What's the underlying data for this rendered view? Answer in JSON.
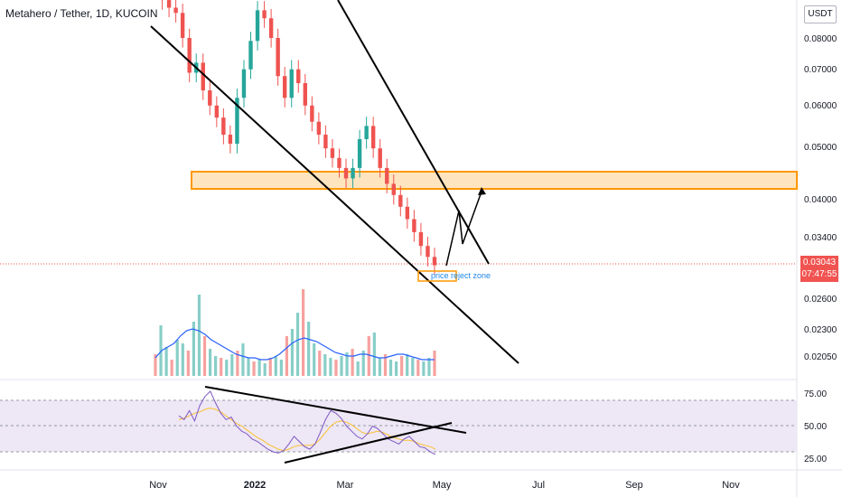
{
  "header": {
    "title": "Metahero / Tether, 1D, KUCOIN",
    "currency": "USDT",
    "currency_icon": "currency-usdt-icon"
  },
  "price_tag": {
    "value": "0.03043",
    "countdown": "07:47:55"
  },
  "colors": {
    "up": "#26a69a",
    "down": "#ef5350",
    "zone": "#ff9800",
    "ma": "#2962ff",
    "rsi": "#7e57c2",
    "rsi_ma": "#fbc02d",
    "rsi_band": "#ede7f6"
  },
  "chart_data": [
    {
      "type": "candlestick",
      "title": "Metahero / Tether, 1D, KUCOIN",
      "x_ticks": [
        "Nov",
        "2022",
        "Mar",
        "May",
        "Jul",
        "Sep",
        "Nov"
      ],
      "y_ticks": [
        "0.08000",
        "0.07000",
        "0.06000",
        "0.05000",
        "0.04000",
        "0.03400",
        "0.02600",
        "0.02300",
        "0.02050"
      ],
      "y_scale": "log",
      "last_price": 0.03043,
      "resistance_zone": [
        0.0427,
        0.046
      ],
      "annotation": "price reject zone",
      "close_series": [
        0.096,
        0.094,
        0.091,
        0.089,
        0.08,
        0.069,
        0.072,
        0.064,
        0.06,
        0.057,
        0.053,
        0.051,
        0.062,
        0.07,
        0.079,
        0.09,
        0.087,
        0.08,
        0.068,
        0.062,
        0.07,
        0.066,
        0.06,
        0.056,
        0.053,
        0.05,
        0.048,
        0.046,
        0.044,
        0.046,
        0.052,
        0.055,
        0.05,
        0.046,
        0.043,
        0.041,
        0.039,
        0.037,
        0.035,
        0.033,
        0.0315,
        0.0304
      ]
    },
    {
      "type": "bar",
      "title": "Volume",
      "values": [
        12,
        28,
        16,
        9,
        20,
        18,
        14,
        30,
        45,
        22,
        15,
        11,
        10,
        9,
        12,
        14,
        18,
        10,
        8,
        9,
        7,
        10,
        11,
        9,
        22,
        26,
        35,
        48,
        30,
        18,
        14,
        12,
        10,
        9,
        11,
        13,
        15,
        8,
        14,
        22,
        24,
        10,
        12,
        9,
        8,
        11,
        12,
        10,
        9,
        8,
        10,
        14
      ],
      "moving_average": [
        10,
        14,
        16,
        18,
        22,
        25,
        26,
        25,
        23,
        20,
        18,
        16,
        14,
        12,
        11,
        10,
        10,
        9,
        9,
        10,
        12,
        15,
        18,
        20,
        21,
        20,
        19,
        17,
        15,
        13,
        12,
        11,
        11,
        12,
        12,
        11,
        10,
        10,
        11,
        12,
        12,
        11,
        10,
        9,
        9,
        9
      ]
    },
    {
      "type": "line",
      "title": "RSI",
      "y_ticks": [
        "75.00",
        "50.00",
        "25.00"
      ],
      "band": [
        30,
        70
      ],
      "values": [
        58,
        55,
        62,
        54,
        66,
        73,
        77,
        68,
        60,
        55,
        57,
        50,
        46,
        44,
        40,
        38,
        35,
        32,
        30,
        29,
        31,
        36,
        42,
        38,
        34,
        32,
        36,
        45,
        55,
        62,
        60,
        56,
        50,
        46,
        42,
        40,
        44,
        50,
        48,
        44,
        40,
        38,
        36,
        40,
        42,
        38,
        34,
        33,
        30,
        28
      ],
      "ma_values": [
        55,
        56,
        58,
        60,
        61,
        63,
        64,
        63,
        61,
        58,
        55,
        52,
        50,
        47,
        44,
        41,
        39,
        36,
        34,
        32,
        31,
        32,
        34,
        35,
        35,
        35,
        36,
        40,
        45,
        50,
        53,
        54,
        53,
        51,
        48,
        45,
        44,
        45,
        46,
        45,
        43,
        41,
        40,
        39,
        39,
        38,
        36,
        35,
        34,
        32
      ]
    }
  ]
}
